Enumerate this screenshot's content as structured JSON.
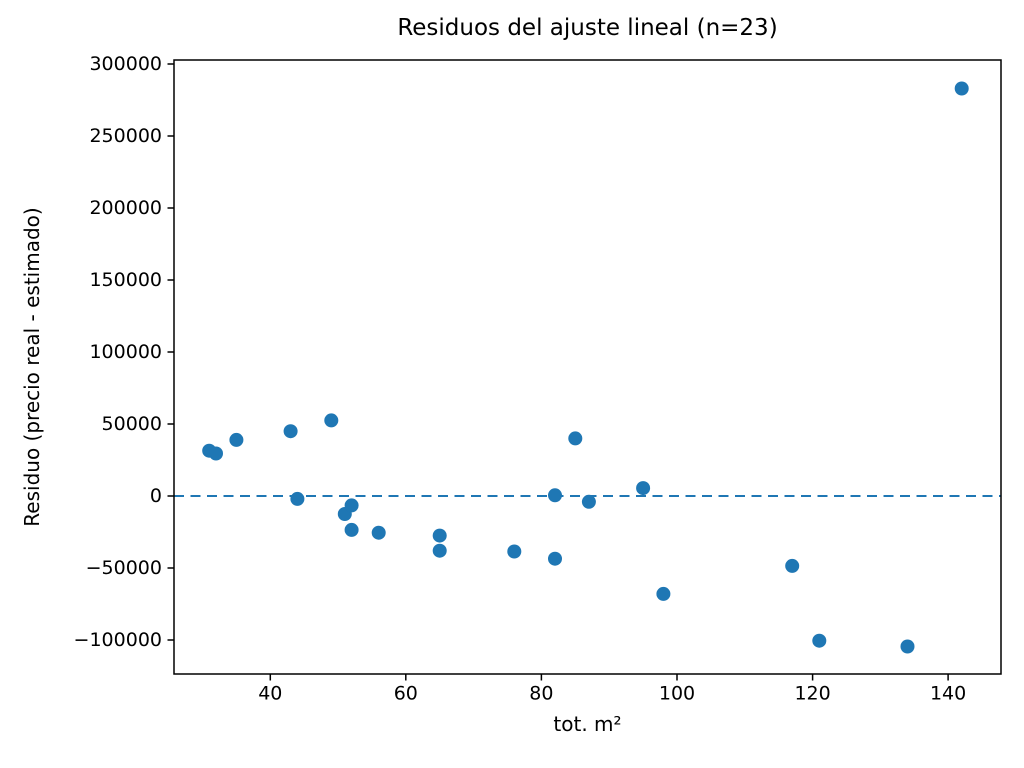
{
  "figure": {
    "background": "#ffffff",
    "text_color": "#000000",
    "spine_color": "#000000"
  },
  "chart_data": {
    "type": "scatter",
    "title": "Residuos del ajuste lineal (n=23)",
    "xlabel": "tot. m²",
    "ylabel": "Residuo (precio real - estimado)",
    "n": 23,
    "grid": false,
    "legend": "none",
    "xlim": [
      25.8,
      147.8
    ],
    "ylim": [
      -123600,
      302800
    ],
    "xticks": [
      {
        "v": 40,
        "label": "40"
      },
      {
        "v": 60,
        "label": "60"
      },
      {
        "v": 80,
        "label": "80"
      },
      {
        "v": 100,
        "label": "100"
      },
      {
        "v": 120,
        "label": "120"
      },
      {
        "v": 140,
        "label": "140"
      }
    ],
    "yticks": [
      {
        "v": -100000,
        "label": "−100000"
      },
      {
        "v": -50000,
        "label": "−50000"
      },
      {
        "v": 0,
        "label": "0"
      },
      {
        "v": 50000,
        "label": "50000"
      },
      {
        "v": 100000,
        "label": "100000"
      },
      {
        "v": 150000,
        "label": "150000"
      },
      {
        "v": 200000,
        "label": "200000"
      },
      {
        "v": 250000,
        "label": "250000"
      },
      {
        "v": 300000,
        "label": "300000"
      }
    ],
    "zero_line": {
      "y": 0,
      "style": "dashed",
      "color": "#1f77b4"
    },
    "marker": {
      "shape": "circle",
      "color": "#1f77b4",
      "radius": 7
    },
    "points": [
      [
        31,
        31500
      ],
      [
        32,
        29500
      ],
      [
        35,
        39000
      ],
      [
        43,
        45000
      ],
      [
        44,
        -2000
      ],
      [
        49,
        52500
      ],
      [
        51,
        -12500
      ],
      [
        52,
        -6500
      ],
      [
        52,
        -23500
      ],
      [
        56,
        -25500
      ],
      [
        65,
        -27500
      ],
      [
        65,
        -38000
      ],
      [
        76,
        -38500
      ],
      [
        82,
        500
      ],
      [
        82,
        -43500
      ],
      [
        85,
        40000
      ],
      [
        87,
        -4000
      ],
      [
        95,
        5500
      ],
      [
        98,
        -68000
      ],
      [
        117,
        -48500
      ],
      [
        121,
        -100500
      ],
      [
        134,
        -104500
      ],
      [
        142,
        283000
      ]
    ]
  }
}
